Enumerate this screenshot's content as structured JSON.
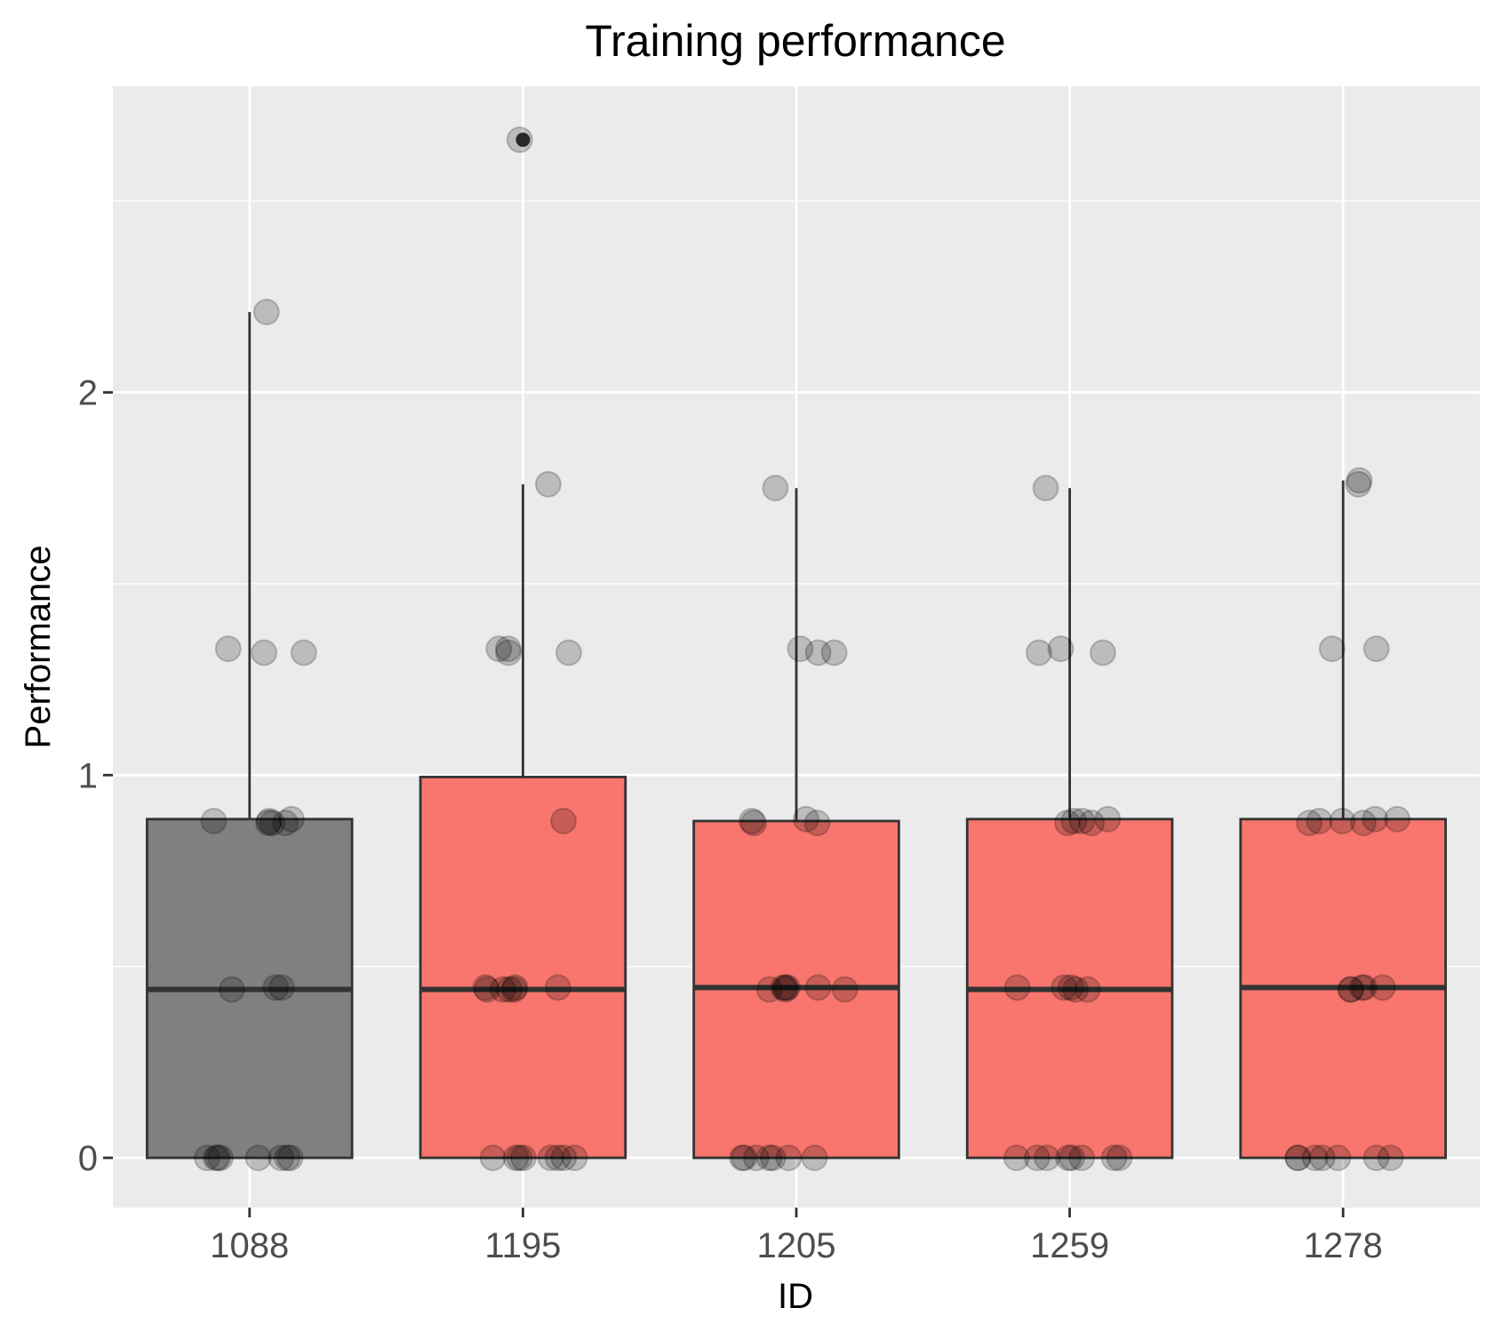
{
  "chart_data": {
    "type": "box",
    "title": "Training performance",
    "xlabel": "ID",
    "ylabel": "Performance",
    "categories": [
      "1088",
      "1195",
      "1205",
      "1259",
      "1278"
    ],
    "y_ticks": [
      "0",
      "1",
      "2"
    ],
    "ylim": [
      -0.13,
      2.8
    ],
    "grid": true,
    "colors": {
      "panel_background": "#ebebeb",
      "grid": "#ffffff",
      "box_outline": "#333333",
      "point": "#000000"
    },
    "boxes": [
      {
        "category": "1088",
        "q1": 0,
        "median": 0.44,
        "q3": 0.885,
        "lower_whisker": 0,
        "upper_whisker": 2.21,
        "fill": "#808080",
        "outliers": []
      },
      {
        "category": "1195",
        "q1": 0,
        "median": 0.44,
        "q3": 0.995,
        "lower_whisker": 0,
        "upper_whisker": 1.76,
        "fill": "#f8766d",
        "outliers": [
          2.66
        ]
      },
      {
        "category": "1205",
        "q1": 0,
        "median": 0.445,
        "q3": 0.88,
        "lower_whisker": 0,
        "upper_whisker": 1.75,
        "fill": "#f8766d",
        "outliers": []
      },
      {
        "category": "1259",
        "q1": 0,
        "median": 0.44,
        "q3": 0.885,
        "lower_whisker": 0,
        "upper_whisker": 1.75,
        "fill": "#f8766d",
        "outliers": []
      },
      {
        "category": "1278",
        "q1": 0,
        "median": 0.445,
        "q3": 0.885,
        "lower_whisker": 0,
        "upper_whisker": 1.77,
        "fill": "#f8766d",
        "outliers": []
      }
    ],
    "jitter_points": [
      {
        "category": "1088",
        "values": [
          2.21,
          1.33,
          1.32,
          1.32,
          0.88,
          0.875,
          0.88,
          0.885,
          0.875,
          0.875,
          0.445,
          0.44,
          0.445,
          0,
          0,
          0,
          0,
          0,
          0,
          0,
          0
        ]
      },
      {
        "category": "1195",
        "values": [
          2.66,
          1.76,
          1.33,
          1.33,
          1.32,
          1.32,
          0.88,
          0.44,
          0.445,
          0.445,
          0.44,
          0.445,
          0.44,
          0.44,
          0,
          0,
          0,
          0,
          0,
          0,
          0,
          0
        ]
      },
      {
        "category": "1205",
        "values": [
          1.75,
          1.33,
          1.32,
          1.32,
          0.875,
          0.885,
          0.88,
          0.875,
          0.445,
          0.445,
          0.44,
          0.445,
          0.44,
          0.445,
          0.44,
          0,
          0,
          0,
          0,
          0,
          0,
          0
        ]
      },
      {
        "category": "1259",
        "values": [
          1.75,
          1.33,
          1.32,
          1.32,
          0.875,
          0.88,
          0.885,
          0.88,
          0.875,
          0.445,
          0.44,
          0.445,
          0.445,
          0.44,
          0,
          0,
          0,
          0,
          0,
          0,
          0,
          0
        ]
      },
      {
        "category": "1278",
        "values": [
          1.76,
          1.77,
          1.33,
          1.33,
          0.875,
          0.88,
          0.885,
          0.885,
          0.88,
          0.875,
          0.44,
          0.445,
          0.445,
          0.44,
          0.445,
          0,
          0,
          0,
          0,
          0,
          0,
          0
        ]
      }
    ]
  }
}
